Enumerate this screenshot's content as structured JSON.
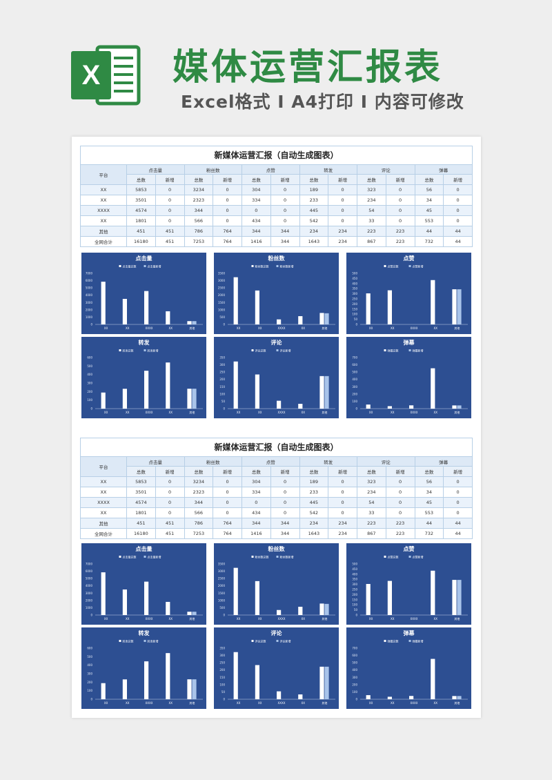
{
  "header": {
    "title": "媒体运营汇报表",
    "subtitle": "Excel格式 I A4打印 I 内容可修改",
    "logo_letter": "X"
  },
  "report": {
    "title": "新媒体运营汇报（自动生成图表）",
    "platform_label": "平台",
    "group_labels": [
      "点击量",
      "粉丝数",
      "点赞",
      "转发",
      "评论",
      "弹幕"
    ],
    "sub_labels": [
      "总数",
      "新增"
    ],
    "rows": [
      {
        "name": "XX",
        "values": [
          "5853",
          "0",
          "3234",
          "0",
          "304",
          "0",
          "189",
          "0",
          "323",
          "0",
          "56",
          "0"
        ]
      },
      {
        "name": "XX",
        "values": [
          "3501",
          "0",
          "2323",
          "0",
          "334",
          "0",
          "233",
          "0",
          "234",
          "0",
          "34",
          "0"
        ]
      },
      {
        "name": "XXXX",
        "values": [
          "4574",
          "0",
          "344",
          "0",
          "0",
          "0",
          "445",
          "0",
          "54",
          "0",
          "45",
          "0"
        ]
      },
      {
        "name": "XX",
        "values": [
          "1801",
          "0",
          "566",
          "0",
          "434",
          "0",
          "542",
          "0",
          "33",
          "0",
          "553",
          "0"
        ]
      },
      {
        "name": "其他",
        "values": [
          "451",
          "451",
          "786",
          "764",
          "344",
          "344",
          "234",
          "234",
          "223",
          "223",
          "44",
          "44"
        ]
      },
      {
        "name": "全网合计",
        "values": [
          "16180",
          "451",
          "7253",
          "764",
          "1416",
          "344",
          "1643",
          "234",
          "867",
          "223",
          "732",
          "44"
        ]
      }
    ]
  },
  "chart_data": [
    {
      "type": "bar",
      "title": "点击量",
      "categories": [
        "XX",
        "XX",
        "XXXX",
        "XX",
        "其他"
      ],
      "series": [
        {
          "name": "点击量总数",
          "values": [
            5853,
            3501,
            4574,
            1801,
            451
          ]
        },
        {
          "name": "点击量新增",
          "values": [
            0,
            0,
            0,
            0,
            451
          ]
        }
      ],
      "ylim": [
        0,
        7000
      ],
      "yticks": [
        "0",
        "1000",
        "2000",
        "3000",
        "4000",
        "5000",
        "6000",
        "7000"
      ]
    },
    {
      "type": "bar",
      "title": "粉丝数",
      "categories": [
        "XX",
        "XX",
        "XXXX",
        "XX",
        "其他"
      ],
      "series": [
        {
          "name": "粉丝数总数",
          "values": [
            3234,
            2323,
            344,
            566,
            786
          ]
        },
        {
          "name": "粉丝数新增",
          "values": [
            0,
            0,
            0,
            0,
            764
          ]
        }
      ],
      "ylim": [
        0,
        3500
      ],
      "yticks": [
        "0",
        "500",
        "1000",
        "1500",
        "2000",
        "2500",
        "3000",
        "3500"
      ]
    },
    {
      "type": "bar",
      "title": "点赞",
      "categories": [
        "XX",
        "XX",
        "XXXX",
        "XX",
        "其他"
      ],
      "series": [
        {
          "name": "点赞总数",
          "values": [
            304,
            334,
            0,
            434,
            344
          ]
        },
        {
          "name": "点赞新增",
          "values": [
            0,
            0,
            0,
            0,
            344
          ]
        }
      ],
      "ylim": [
        0,
        500
      ],
      "yticks": [
        "0",
        "50",
        "100",
        "150",
        "200",
        "250",
        "300",
        "350",
        "400",
        "450",
        "500"
      ]
    },
    {
      "type": "bar",
      "title": "转发",
      "categories": [
        "XX",
        "XX",
        "XXXX",
        "XX",
        "其他"
      ],
      "series": [
        {
          "name": "转发总数",
          "values": [
            189,
            233,
            445,
            542,
            234
          ]
        },
        {
          "name": "转发新增",
          "values": [
            0,
            0,
            0,
            0,
            234
          ]
        }
      ],
      "ylim": [
        0,
        600
      ],
      "yticks": [
        "0",
        "100",
        "200",
        "300",
        "400",
        "500",
        "600"
      ]
    },
    {
      "type": "bar",
      "title": "评论",
      "categories": [
        "XX",
        "XX",
        "XXXX",
        "XX",
        "其他"
      ],
      "series": [
        {
          "name": "评论总数",
          "values": [
            323,
            234,
            54,
            33,
            223
          ]
        },
        {
          "name": "评论新增",
          "values": [
            0,
            0,
            0,
            0,
            223
          ]
        }
      ],
      "ylim": [
        0,
        350
      ],
      "yticks": [
        "0",
        "50",
        "100",
        "150",
        "200",
        "250",
        "300",
        "350"
      ]
    },
    {
      "type": "bar",
      "title": "弹幕",
      "categories": [
        "XX",
        "XX",
        "XXXX",
        "XX",
        "其他"
      ],
      "series": [
        {
          "name": "弹幕总数",
          "values": [
            56,
            34,
            45,
            553,
            44
          ]
        },
        {
          "name": "弹幕新增",
          "values": [
            0,
            0,
            0,
            0,
            44
          ]
        }
      ],
      "ylim": [
        0,
        700
      ],
      "yticks": [
        "0",
        "100",
        "200",
        "300",
        "400",
        "500",
        "600",
        "700"
      ]
    }
  ],
  "colors": {
    "brand_green": "#2f8a44",
    "chart_bg": "#2d4f92",
    "bar_total": "#ffffff",
    "bar_new": "#a9c4ea"
  }
}
